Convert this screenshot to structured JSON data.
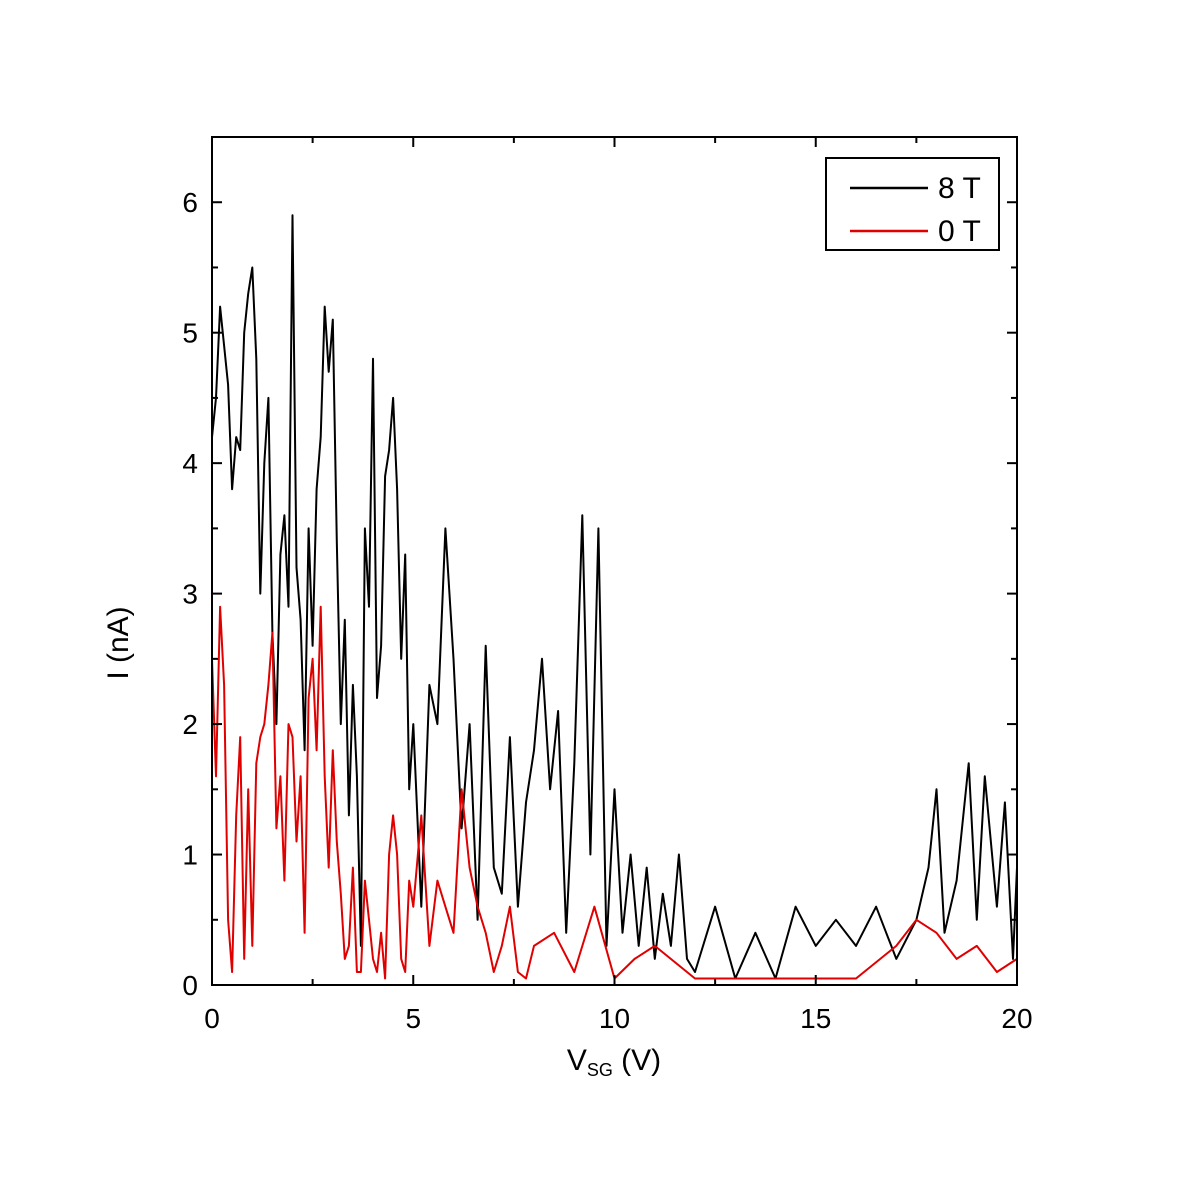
{
  "chart_data": {
    "type": "line",
    "xlabel_main": "V",
    "xlabel_sub": "SG",
    "xlabel_unit": " (V)",
    "ylabel": "I (nA)",
    "xlim": [
      0,
      20
    ],
    "ylim": [
      0,
      6.5
    ],
    "xticks": [
      0,
      5,
      10,
      15,
      20
    ],
    "yticks": [
      0,
      1,
      2,
      3,
      4,
      5,
      6
    ],
    "grid": false,
    "legend_position": "top-right",
    "series": [
      {
        "name": "8 T",
        "color": "#000000",
        "x": [
          0.0,
          0.1,
          0.2,
          0.3,
          0.4,
          0.5,
          0.6,
          0.7,
          0.8,
          0.9,
          1.0,
          1.1,
          1.2,
          1.3,
          1.4,
          1.5,
          1.6,
          1.7,
          1.8,
          1.9,
          2.0,
          2.1,
          2.2,
          2.3,
          2.4,
          2.5,
          2.6,
          2.7,
          2.8,
          2.9,
          3.0,
          3.1,
          3.2,
          3.3,
          3.4,
          3.5,
          3.6,
          3.7,
          3.8,
          3.9,
          4.0,
          4.1,
          4.2,
          4.3,
          4.4,
          4.5,
          4.6,
          4.7,
          4.8,
          4.9,
          5.0,
          5.2,
          5.4,
          5.6,
          5.8,
          6.0,
          6.2,
          6.4,
          6.6,
          6.8,
          7.0,
          7.2,
          7.4,
          7.6,
          7.8,
          8.0,
          8.2,
          8.4,
          8.6,
          8.8,
          9.0,
          9.2,
          9.4,
          9.6,
          9.8,
          10.0,
          10.2,
          10.4,
          10.6,
          10.8,
          11.0,
          11.2,
          11.4,
          11.6,
          11.8,
          12.0,
          12.5,
          13.0,
          13.5,
          14.0,
          14.5,
          15.0,
          15.5,
          16.0,
          16.5,
          17.0,
          17.5,
          17.8,
          18.0,
          18.2,
          18.5,
          18.8,
          19.0,
          19.2,
          19.5,
          19.7,
          19.9,
          20.0
        ],
        "y": [
          4.2,
          4.5,
          5.2,
          4.9,
          4.6,
          3.8,
          4.2,
          4.1,
          5.0,
          5.3,
          5.5,
          4.8,
          3.0,
          4.0,
          4.5,
          2.7,
          2.0,
          3.3,
          3.6,
          2.9,
          5.9,
          3.2,
          2.8,
          1.8,
          3.5,
          2.6,
          3.8,
          4.2,
          5.2,
          4.7,
          5.1,
          3.4,
          2.0,
          2.8,
          1.3,
          2.3,
          1.6,
          0.3,
          3.5,
          2.9,
          4.8,
          2.2,
          2.6,
          3.9,
          4.1,
          4.5,
          3.8,
          2.5,
          3.3,
          1.5,
          2.0,
          0.6,
          2.3,
          2.0,
          3.5,
          2.5,
          1.2,
          2.0,
          0.5,
          2.6,
          0.9,
          0.7,
          1.9,
          0.6,
          1.4,
          1.8,
          2.5,
          1.5,
          2.1,
          0.4,
          1.7,
          3.6,
          1.0,
          3.5,
          0.3,
          1.5,
          0.4,
          1.0,
          0.3,
          0.9,
          0.2,
          0.7,
          0.3,
          1.0,
          0.2,
          0.1,
          0.6,
          0.05,
          0.4,
          0.05,
          0.6,
          0.3,
          0.5,
          0.3,
          0.6,
          0.2,
          0.5,
          0.9,
          1.5,
          0.4,
          0.8,
          1.7,
          0.5,
          1.6,
          0.6,
          1.4,
          0.2,
          0.9
        ]
      },
      {
        "name": "0 T",
        "color": "#e00000",
        "x": [
          0.0,
          0.1,
          0.2,
          0.3,
          0.4,
          0.5,
          0.6,
          0.7,
          0.8,
          0.9,
          1.0,
          1.1,
          1.2,
          1.3,
          1.4,
          1.5,
          1.6,
          1.7,
          1.8,
          1.9,
          2.0,
          2.1,
          2.2,
          2.3,
          2.4,
          2.5,
          2.6,
          2.7,
          2.8,
          2.9,
          3.0,
          3.1,
          3.2,
          3.3,
          3.4,
          3.5,
          3.6,
          3.7,
          3.8,
          3.9,
          4.0,
          4.1,
          4.2,
          4.3,
          4.4,
          4.5,
          4.6,
          4.7,
          4.8,
          4.9,
          5.0,
          5.2,
          5.4,
          5.6,
          5.8,
          6.0,
          6.2,
          6.4,
          6.6,
          6.8,
          7.0,
          7.2,
          7.4,
          7.6,
          7.8,
          8.0,
          8.5,
          9.0,
          9.5,
          10.0,
          10.5,
          11.0,
          12.0,
          13.0,
          14.0,
          15.0,
          16.0,
          17.0,
          17.5,
          18.0,
          18.5,
          19.0,
          19.5,
          20.0
        ],
        "y": [
          2.5,
          1.6,
          2.9,
          2.3,
          0.5,
          0.1,
          1.3,
          1.9,
          0.2,
          1.5,
          0.3,
          1.7,
          1.9,
          2.0,
          2.3,
          2.7,
          1.2,
          1.6,
          0.8,
          2.0,
          1.9,
          1.1,
          1.6,
          0.4,
          2.2,
          2.5,
          1.8,
          2.9,
          1.6,
          0.9,
          1.8,
          1.1,
          0.7,
          0.2,
          0.3,
          0.9,
          0.1,
          0.1,
          0.8,
          0.5,
          0.2,
          0.1,
          0.4,
          0.05,
          1.0,
          1.3,
          1.0,
          0.2,
          0.1,
          0.8,
          0.6,
          1.3,
          0.3,
          0.8,
          0.6,
          0.4,
          1.5,
          0.9,
          0.6,
          0.4,
          0.1,
          0.3,
          0.6,
          0.1,
          0.05,
          0.3,
          0.4,
          0.1,
          0.6,
          0.05,
          0.2,
          0.3,
          0.05,
          0.05,
          0.05,
          0.05,
          0.05,
          0.3,
          0.5,
          0.4,
          0.2,
          0.3,
          0.1,
          0.2
        ]
      }
    ]
  }
}
